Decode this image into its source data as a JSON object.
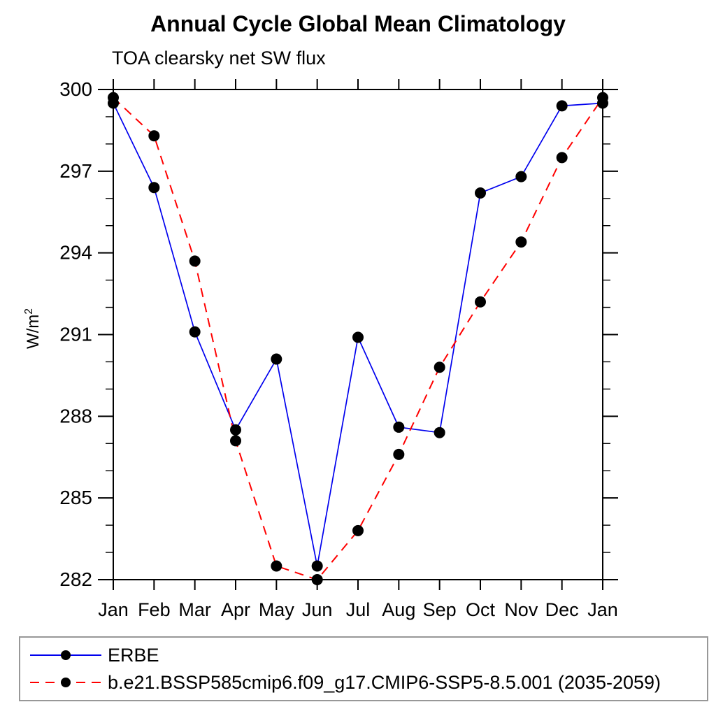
{
  "page": {
    "background": "#ffffff"
  },
  "chart": {
    "title": "Annual Cycle Global Mean Climatology",
    "subtitle": "TOA clearsky net SW flux",
    "ylabel_text": "W/m",
    "ylabel_sup": "2"
  },
  "chart_data": {
    "type": "line",
    "title": "Annual Cycle Global Mean Climatology",
    "subtitle": "TOA clearsky net SW flux",
    "xlabel": "",
    "ylabel": "W/m²",
    "categories": [
      "Jan",
      "Feb",
      "Mar",
      "Apr",
      "May",
      "Jun",
      "Jul",
      "Aug",
      "Sep",
      "Oct",
      "Nov",
      "Dec",
      "Jan"
    ],
    "ylim": [
      282,
      300
    ],
    "ytick_major": [
      282,
      285,
      288,
      291,
      294,
      297,
      300
    ],
    "ytick_minor_step": 1,
    "grid": false,
    "legend_position": "bottom",
    "frame_color": "#000000",
    "marker_color": "#000000",
    "series": [
      {
        "name": "ERBE",
        "color": "#0000ee",
        "style": "solid",
        "marker": "filled-circle",
        "values": [
          299.5,
          296.4,
          291.1,
          287.5,
          290.1,
          282.5,
          290.9,
          287.6,
          287.4,
          296.2,
          296.8,
          299.4,
          299.5
        ]
      },
      {
        "name": "b.e21.BSSP585cmip6.f09_g17.CMIP6-SSP5-8.5.001 (2035-2059)",
        "color": "#ff0000",
        "style": "dashed",
        "marker": "filled-circle",
        "values": [
          299.7,
          298.3,
          293.7,
          287.1,
          282.5,
          282.0,
          283.8,
          286.6,
          289.8,
          292.2,
          294.4,
          297.5,
          299.7
        ]
      }
    ]
  }
}
